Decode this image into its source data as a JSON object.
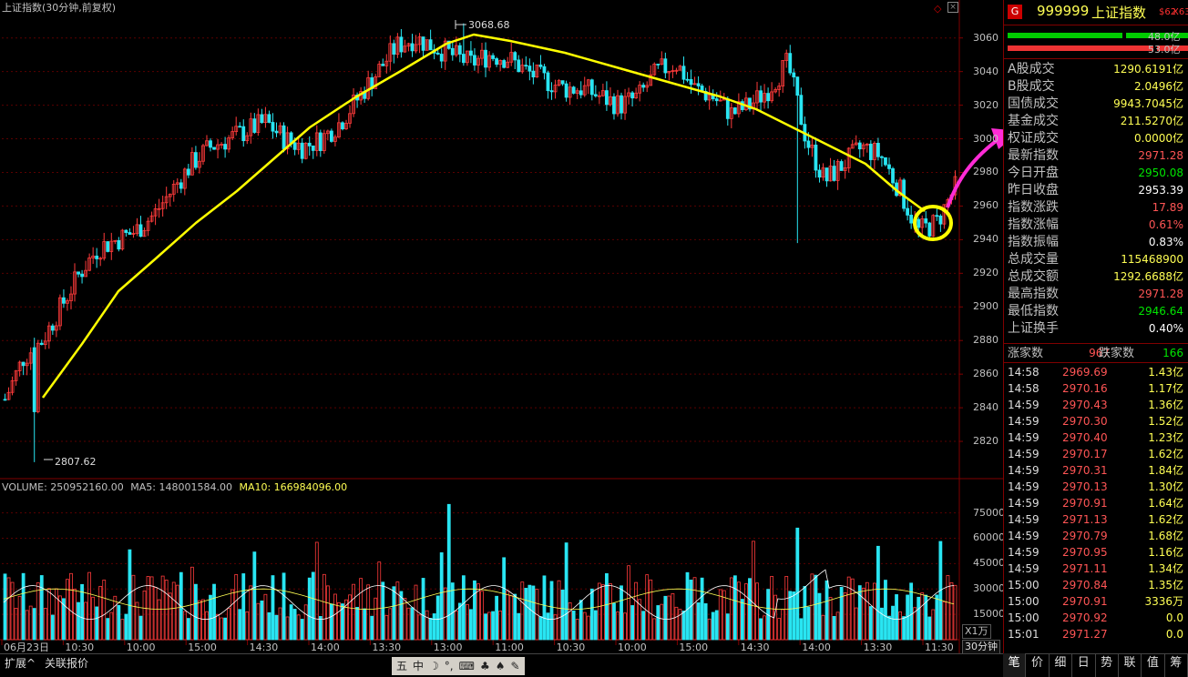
{
  "chart": {
    "title": "上证指数(30分钟,前复权)",
    "high_label": "3068.68",
    "low_label": "2807.62",
    "price_axis": [
      "3060",
      "3040",
      "3020",
      "3000",
      "2980",
      "2960",
      "2940",
      "2920",
      "2900",
      "2880",
      "2860",
      "2840",
      "2820"
    ],
    "volume_title": {
      "vol": "VOLUME: 250952160.00",
      "ma5": "MA5: 148001584.00",
      "ma10": "MA10: 166984096.00"
    },
    "volume_axis": [
      "75000",
      "60000",
      "45000",
      "30000",
      "15000"
    ],
    "unit": "X1万",
    "time_axis": [
      "06月23日",
      "10:30",
      "10:00",
      "15:00",
      "14:30",
      "14:00",
      "13:30",
      "13:00",
      "11:00",
      "10:30",
      "10:00",
      "15:00",
      "14:30",
      "14:00",
      "13:30",
      "11:30"
    ],
    "period": "30分钟",
    "colors": {
      "up": "#ff3b3b",
      "down": "#29e5f2",
      "trend": "#ffff00",
      "annotation": "#ff2bd6"
    }
  },
  "chart_data": {
    "type": "candlestick",
    "ylim": [
      2800,
      3075
    ],
    "high": 3068.68,
    "low": 2807.62,
    "close_path": [
      2845,
      2870,
      2880,
      2900,
      2920,
      2935,
      2940,
      2945,
      2955,
      2970,
      2985,
      2995,
      3000,
      3005,
      3010,
      3000,
      2995,
      3000,
      3010,
      3025,
      3040,
      3055,
      3060,
      3055,
      3050,
      3045,
      3050,
      3048,
      3040,
      3035,
      3030,
      3030,
      3025,
      3020,
      3025,
      3040,
      3045,
      3030,
      3025,
      3015,
      3020,
      3030,
      3045,
      3000,
      2975,
      2985,
      2995,
      2990,
      2970,
      2945,
      2950,
      2971
    ],
    "volume_ylim": [
      0,
      85000
    ]
  },
  "panel": {
    "badge": "G",
    "code": "999999",
    "name": "上证指数",
    "tag1": "$62",
    "tag2": "X63",
    "bar1": "48.0亿",
    "bar2": "53.0亿",
    "stats": [
      {
        "k": "A股成交",
        "v": "1290.6191亿",
        "c": "yel"
      },
      {
        "k": "B股成交",
        "v": "2.0496亿",
        "c": "yel"
      },
      {
        "k": "国债成交",
        "v": "9943.7045亿",
        "c": "yel"
      },
      {
        "k": "基金成交",
        "v": "211.5270亿",
        "c": "yel"
      },
      {
        "k": "权证成交",
        "v": "0.0000亿",
        "c": "yel"
      },
      {
        "k": "最新指数",
        "v": "2971.28",
        "c": "red"
      },
      {
        "k": "今日开盘",
        "v": "2950.08",
        "c": "grn"
      },
      {
        "k": "昨日收盘",
        "v": "2953.39",
        "c": "wht"
      },
      {
        "k": "指数涨跌",
        "v": "17.89",
        "c": "red"
      },
      {
        "k": "指数涨幅",
        "v": "0.61%",
        "c": "red"
      },
      {
        "k": "指数振幅",
        "v": "0.83%",
        "c": "wht"
      },
      {
        "k": "总成交量",
        "v": "115468900",
        "c": "yel"
      },
      {
        "k": "总成交额",
        "v": "1292.6688亿",
        "c": "yel"
      },
      {
        "k": "最高指数",
        "v": "2971.28",
        "c": "red"
      },
      {
        "k": "最低指数",
        "v": "2946.64",
        "c": "grn"
      },
      {
        "k": "上证换手",
        "v": "0.40%",
        "c": "wht"
      }
    ],
    "breadth": {
      "up_label": "涨家数",
      "up": "967",
      "down_label": "跌家数",
      "down": "166"
    },
    "trades": [
      {
        "t": "14:58",
        "p": "2969.69",
        "q": "1.43亿"
      },
      {
        "t": "14:58",
        "p": "2970.16",
        "q": "1.17亿"
      },
      {
        "t": "14:59",
        "p": "2970.43",
        "q": "1.36亿"
      },
      {
        "t": "14:59",
        "p": "2970.30",
        "q": "1.52亿"
      },
      {
        "t": "14:59",
        "p": "2970.40",
        "q": "1.23亿"
      },
      {
        "t": "14:59",
        "p": "2970.17",
        "q": "1.62亿"
      },
      {
        "t": "14:59",
        "p": "2970.31",
        "q": "1.84亿"
      },
      {
        "t": "14:59",
        "p": "2970.13",
        "q": "1.30亿"
      },
      {
        "t": "14:59",
        "p": "2970.91",
        "q": "1.64亿"
      },
      {
        "t": "14:59",
        "p": "2971.13",
        "q": "1.62亿"
      },
      {
        "t": "14:59",
        "p": "2970.79",
        "q": "1.68亿"
      },
      {
        "t": "14:59",
        "p": "2970.95",
        "q": "1.16亿"
      },
      {
        "t": "14:59",
        "p": "2971.11",
        "q": "1.34亿"
      },
      {
        "t": "15:00",
        "p": "2970.84",
        "q": "1.35亿"
      },
      {
        "t": "15:00",
        "p": "2970.91",
        "q": "3336万"
      },
      {
        "t": "15:00",
        "p": "2970.92",
        "q": "0.0"
      },
      {
        "t": "15:01",
        "p": "2971.27",
        "q": "0.0"
      }
    ],
    "tabs": [
      "笔",
      "价",
      "细",
      "日",
      "势",
      "联",
      "值",
      "筹"
    ]
  },
  "bottom": {
    "expand": "扩展^",
    "related": "关联报价",
    "tools": [
      "五",
      "中",
      "☽",
      "°,",
      "⌨",
      "♣",
      "♠",
      "✎"
    ]
  }
}
